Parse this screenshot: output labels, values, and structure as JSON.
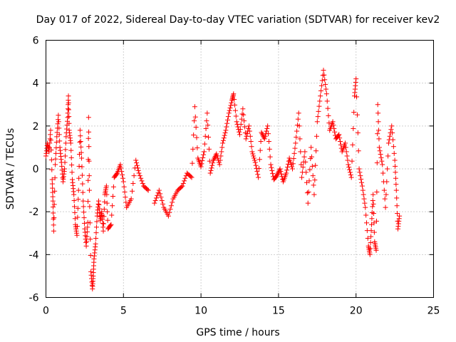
{
  "chart_data": {
    "type": "scatter",
    "title": "Day 017 of 2022, Sidereal Day-to-day VTEC variation (SDTVAR) for receiver kev2",
    "xlabel": "GPS time / hours",
    "ylabel": "SDTVAR / TECUs",
    "xlim": [
      0,
      25
    ],
    "ylim": [
      -6,
      6
    ],
    "xticks": [
      "0",
      "5",
      "10",
      "15",
      "20",
      "25"
    ],
    "yticks": [
      "-6",
      "-4",
      "-2",
      "0",
      "2",
      "4",
      "6"
    ],
    "grid": true,
    "marker": "+",
    "color": "#ff0000",
    "series": [
      {
        "name": "kev2",
        "points": [
          [
            0.0,
            0.6
          ],
          [
            0.1,
            1.2
          ],
          [
            0.2,
            0.8
          ],
          [
            0.3,
            1.8
          ],
          [
            0.4,
            -0.5
          ],
          [
            0.45,
            -1.5
          ],
          [
            0.5,
            -2.9
          ],
          [
            0.6,
            0.2
          ],
          [
            0.7,
            1.5
          ],
          [
            0.8,
            2.5
          ],
          [
            0.9,
            1.0
          ],
          [
            1.0,
            0.3
          ],
          [
            1.1,
            -0.6
          ],
          [
            1.2,
            0.0
          ],
          [
            1.3,
            1.5
          ],
          [
            1.4,
            2.4
          ],
          [
            1.45,
            3.4
          ],
          [
            1.5,
            1.8
          ],
          [
            1.6,
            1.2
          ],
          [
            1.7,
            -0.5
          ],
          [
            1.8,
            -1.2
          ],
          [
            1.9,
            -2.6
          ],
          [
            2.0,
            -3.1
          ],
          [
            2.1,
            -1.0
          ],
          [
            2.2,
            1.8
          ],
          [
            2.3,
            0.5
          ],
          [
            2.4,
            -1.5
          ],
          [
            2.5,
            -2.8
          ],
          [
            2.6,
            -3.6
          ],
          [
            2.7,
            -2.5
          ],
          [
            2.75,
            2.4
          ],
          [
            2.8,
            -1.0
          ],
          [
            2.9,
            -4.8
          ],
          [
            3.0,
            -5.6
          ],
          [
            3.05,
            -5.0
          ],
          [
            3.1,
            -4.2
          ],
          [
            3.2,
            -3.5
          ],
          [
            3.3,
            -2.2
          ],
          [
            3.4,
            -1.5
          ],
          [
            3.5,
            -2.4
          ],
          [
            3.6,
            -2.0
          ],
          [
            3.7,
            -2.9
          ],
          [
            3.8,
            -1.2
          ],
          [
            3.9,
            -0.8
          ],
          [
            4.0,
            -2.8
          ],
          [
            4.2,
            -2.6
          ],
          [
            4.4,
            -0.4
          ],
          [
            4.6,
            -0.2
          ],
          [
            4.8,
            0.2
          ],
          [
            5.0,
            -0.6
          ],
          [
            5.2,
            -1.8
          ],
          [
            5.5,
            -1.4
          ],
          [
            5.8,
            0.4
          ],
          [
            6.0,
            -0.2
          ],
          [
            6.3,
            -0.8
          ],
          [
            6.6,
            -1.0
          ],
          [
            7.0,
            -1.6
          ],
          [
            7.3,
            -1.0
          ],
          [
            7.6,
            -1.8
          ],
          [
            7.9,
            -2.2
          ],
          [
            8.2,
            -1.4
          ],
          [
            8.5,
            -1.0
          ],
          [
            8.8,
            -0.8
          ],
          [
            9.1,
            -0.2
          ],
          [
            9.4,
            -0.4
          ],
          [
            9.6,
            2.9
          ],
          [
            9.8,
            0.5
          ],
          [
            10.0,
            0.1
          ],
          [
            10.2,
            0.8
          ],
          [
            10.4,
            2.6
          ],
          [
            10.6,
            -0.2
          ],
          [
            10.8,
            0.4
          ],
          [
            11.0,
            0.7
          ],
          [
            11.2,
            0.2
          ],
          [
            11.4,
            1.2
          ],
          [
            11.6,
            1.8
          ],
          [
            11.8,
            2.6
          ],
          [
            12.0,
            3.2
          ],
          [
            12.1,
            3.5
          ],
          [
            12.3,
            2.2
          ],
          [
            12.5,
            1.6
          ],
          [
            12.7,
            2.8
          ],
          [
            12.9,
            1.4
          ],
          [
            13.1,
            2.0
          ],
          [
            13.3,
            0.8
          ],
          [
            13.5,
            0.3
          ],
          [
            13.7,
            -0.4
          ],
          [
            13.9,
            1.7
          ],
          [
            14.1,
            1.4
          ],
          [
            14.3,
            2.0
          ],
          [
            14.5,
            0.2
          ],
          [
            14.7,
            -0.5
          ],
          [
            14.9,
            -0.3
          ],
          [
            15.1,
            0.0
          ],
          [
            15.3,
            -0.6
          ],
          [
            15.5,
            -0.2
          ],
          [
            15.7,
            0.5
          ],
          [
            15.9,
            0.0
          ],
          [
            16.1,
            1.2
          ],
          [
            16.3,
            2.6
          ],
          [
            16.5,
            -0.4
          ],
          [
            16.7,
            0.8
          ],
          [
            16.9,
            -1.6
          ],
          [
            17.1,
            1.0
          ],
          [
            17.3,
            -1.2
          ],
          [
            17.5,
            2.2
          ],
          [
            17.7,
            3.4
          ],
          [
            17.9,
            4.6
          ],
          [
            18.1,
            3.5
          ],
          [
            18.3,
            1.8
          ],
          [
            18.5,
            2.2
          ],
          [
            18.7,
            1.4
          ],
          [
            18.9,
            1.6
          ],
          [
            19.1,
            0.8
          ],
          [
            19.3,
            1.2
          ],
          [
            19.5,
            0.2
          ],
          [
            19.7,
            -0.4
          ],
          [
            19.9,
            3.4
          ],
          [
            20.0,
            4.2
          ],
          [
            20.2,
            0.0
          ],
          [
            20.4,
            -0.8
          ],
          [
            20.6,
            -1.8
          ],
          [
            20.8,
            -3.6
          ],
          [
            20.9,
            -4.0
          ],
          [
            21.0,
            -2.6
          ],
          [
            21.1,
            -1.2
          ],
          [
            21.2,
            -3.4
          ],
          [
            21.3,
            -3.8
          ],
          [
            21.4,
            3.0
          ],
          [
            21.5,
            1.0
          ],
          [
            21.7,
            0.2
          ],
          [
            21.9,
            -1.8
          ],
          [
            22.1,
            1.2
          ],
          [
            22.3,
            2.0
          ],
          [
            22.5,
            0.4
          ],
          [
            22.6,
            -1.0
          ],
          [
            22.7,
            -2.8
          ],
          [
            22.8,
            -2.2
          ]
        ]
      }
    ]
  }
}
